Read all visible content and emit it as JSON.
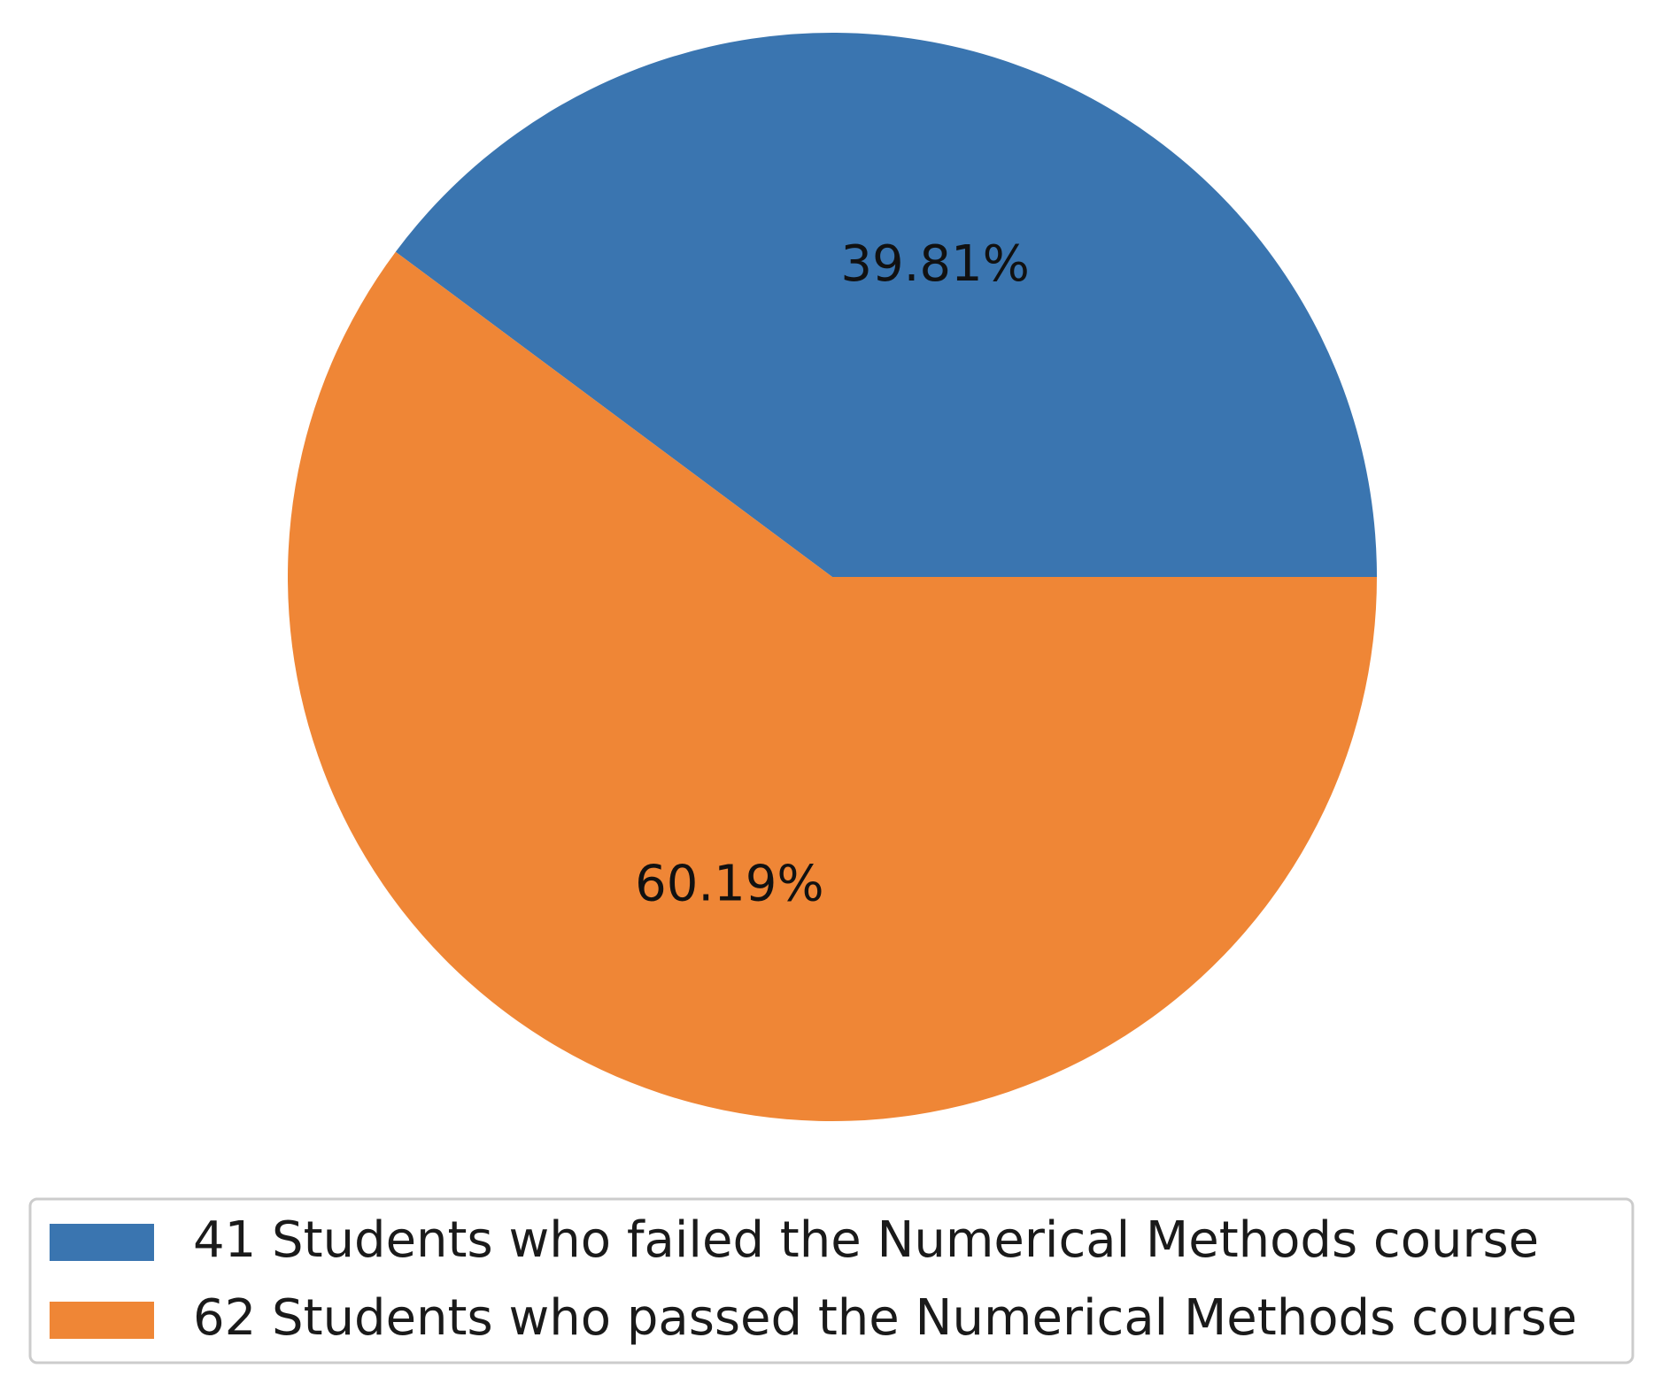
{
  "chart_data": {
    "type": "pie",
    "title": "",
    "start_angle_deg": 0,
    "direction": "counterclockwise",
    "slices": [
      {
        "label": "41 Students who failed the Numerical Methods course",
        "count": 41,
        "value": 39.81,
        "display": "39.81%",
        "color": "#3a75b0"
      },
      {
        "label": "62 Students who passed the Numerical Methods course",
        "count": 62,
        "value": 60.19,
        "display": "60.19%",
        "color": "#ef8636"
      }
    ],
    "legend": {
      "placement": "bottom",
      "entries": [
        "41 Students who failed the Numerical Methods course",
        "62 Students who passed the Numerical Methods course"
      ]
    }
  }
}
